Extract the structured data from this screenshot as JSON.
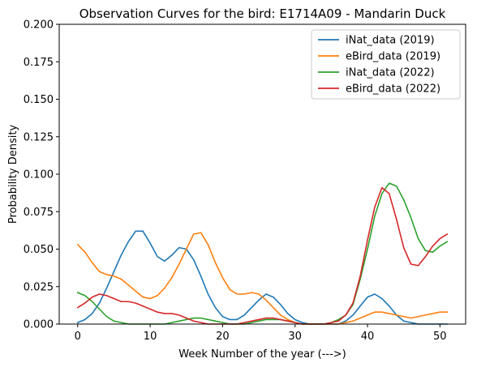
{
  "chart_data": {
    "type": "line",
    "title": "Observation Curves for the bird: E1714A09 - Mandarin Duck",
    "xlabel": "Week Number of the year (--->)",
    "ylabel": "Probability Density",
    "xlim": [
      -2.55,
      53.55
    ],
    "ylim": [
      0,
      0.2
    ],
    "xticks": [
      0,
      10,
      20,
      30,
      40,
      50
    ],
    "xtick_labels": [
      "0",
      "10",
      "20",
      "30",
      "40",
      "50"
    ],
    "yticks": [
      0,
      0.025,
      0.05,
      0.075,
      0.1,
      0.125,
      0.15,
      0.175,
      0.2
    ],
    "ytick_labels": [
      "0.000",
      "0.025",
      "0.050",
      "0.075",
      "0.100",
      "0.125",
      "0.150",
      "0.175",
      "0.200"
    ],
    "grid": false,
    "legend_position": "top-right",
    "x": [
      0,
      1,
      2,
      3,
      4,
      5,
      6,
      7,
      8,
      9,
      10,
      11,
      12,
      13,
      14,
      15,
      16,
      17,
      18,
      19,
      20,
      21,
      22,
      23,
      24,
      25,
      26,
      27,
      28,
      29,
      30,
      31,
      32,
      33,
      34,
      35,
      36,
      37,
      38,
      39,
      40,
      41,
      42,
      43,
      44,
      45,
      46,
      47,
      48,
      49,
      50,
      51
    ],
    "series": [
      {
        "name": "iNat_data (2019)",
        "color": "#1f77b4",
        "values": [
          0.001,
          0.003,
          0.007,
          0.014,
          0.024,
          0.035,
          0.046,
          0.055,
          0.062,
          0.062,
          0.054,
          0.045,
          0.042,
          0.046,
          0.051,
          0.05,
          0.043,
          0.032,
          0.02,
          0.011,
          0.005,
          0.003,
          0.003,
          0.006,
          0.011,
          0.016,
          0.02,
          0.018,
          0.013,
          0.007,
          0.003,
          0.001,
          0.0,
          0.0,
          0.0,
          0.0,
          0.0,
          0.002,
          0.006,
          0.012,
          0.018,
          0.02,
          0.017,
          0.012,
          0.006,
          0.002,
          0.001,
          0.0,
          0.0,
          0.0,
          0.0,
          0.0
        ]
      },
      {
        "name": "eBird_data (2019)",
        "color": "#ff7f0e",
        "values": [
          0.053,
          0.048,
          0.041,
          0.035,
          0.033,
          0.032,
          0.03,
          0.026,
          0.022,
          0.018,
          0.017,
          0.019,
          0.024,
          0.031,
          0.04,
          0.05,
          0.06,
          0.061,
          0.053,
          0.041,
          0.031,
          0.023,
          0.02,
          0.02,
          0.021,
          0.02,
          0.016,
          0.011,
          0.006,
          0.003,
          0.001,
          0.0,
          0.0,
          0.0,
          0.0,
          0.0,
          0.0,
          0.001,
          0.002,
          0.004,
          0.006,
          0.008,
          0.008,
          0.007,
          0.006,
          0.005,
          0.004,
          0.005,
          0.006,
          0.007,
          0.008,
          0.008
        ]
      },
      {
        "name": "iNat_data (2022)",
        "color": "#2ca02c",
        "values": [
          0.021,
          0.019,
          0.015,
          0.01,
          0.005,
          0.002,
          0.001,
          0.0,
          0.0,
          0.0,
          0.0,
          0.0,
          0.0,
          0.001,
          0.002,
          0.003,
          0.004,
          0.004,
          0.003,
          0.002,
          0.001,
          0.0,
          0.0,
          0.0,
          0.001,
          0.002,
          0.003,
          0.003,
          0.003,
          0.002,
          0.001,
          0.0,
          0.0,
          0.0,
          0.0,
          0.001,
          0.003,
          0.006,
          0.013,
          0.03,
          0.05,
          0.072,
          0.087,
          0.094,
          0.092,
          0.083,
          0.071,
          0.057,
          0.049,
          0.048,
          0.052,
          0.055
        ]
      },
      {
        "name": "eBird_data (2022)",
        "color": "#d62728",
        "values": [
          0.011,
          0.014,
          0.018,
          0.02,
          0.019,
          0.017,
          0.015,
          0.015,
          0.014,
          0.012,
          0.01,
          0.008,
          0.007,
          0.007,
          0.006,
          0.004,
          0.002,
          0.001,
          0.0,
          0.0,
          0.0,
          0.0,
          0.0,
          0.001,
          0.002,
          0.003,
          0.004,
          0.004,
          0.003,
          0.002,
          0.001,
          0.0,
          0.0,
          0.0,
          0.0,
          0.001,
          0.002,
          0.006,
          0.014,
          0.032,
          0.056,
          0.078,
          0.091,
          0.087,
          0.07,
          0.051,
          0.04,
          0.039,
          0.045,
          0.052,
          0.057,
          0.06
        ]
      }
    ]
  }
}
